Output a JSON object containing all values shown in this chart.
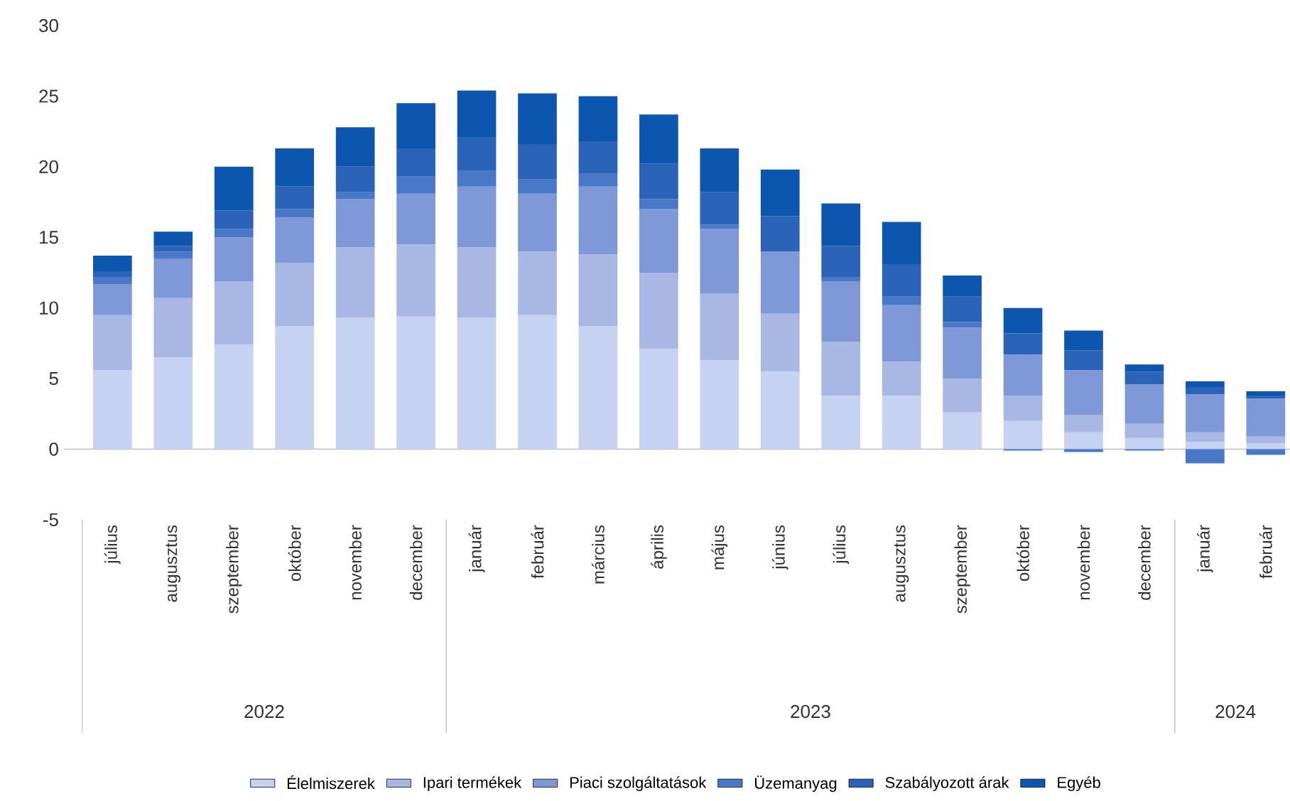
{
  "chart_data": {
    "type": "bar",
    "stacked": true,
    "x": [
      "2022-07",
      "2022-08",
      "2022-09",
      "2022-10",
      "2022-11",
      "2022-12",
      "2023-01",
      "2023-02",
      "2023-03",
      "2023-04",
      "2023-05",
      "2023-06",
      "2023-07",
      "2023-08",
      "2023-09",
      "2023-10",
      "2023-11",
      "2023-12",
      "2024-01",
      "2024-02"
    ],
    "xlim": [
      "2022-06-07",
      "2024-02-13"
    ],
    "xticks": [
      {
        "value": "2022-07",
        "label": "július"
      },
      {
        "value": "2022-08",
        "label": "augusztus"
      },
      {
        "value": "2022-09",
        "label": "szeptember"
      },
      {
        "value": "2022-10",
        "label": "október"
      },
      {
        "value": "2022-11",
        "label": "november"
      },
      {
        "value": "2022-12",
        "label": "december"
      },
      {
        "value": "2023-01",
        "label": "január"
      },
      {
        "value": "2023-02",
        "label": "február"
      },
      {
        "value": "2023-03",
        "label": "március"
      },
      {
        "value": "2023-04",
        "label": "április"
      },
      {
        "value": "2023-05",
        "label": "május"
      },
      {
        "value": "2023-06",
        "label": "június"
      },
      {
        "value": "2023-07",
        "label": "július"
      },
      {
        "value": "2023-08",
        "label": "augusztus"
      },
      {
        "value": "2023-09",
        "label": "szeptember"
      },
      {
        "value": "2023-10",
        "label": "október"
      },
      {
        "value": "2023-11",
        "label": "november"
      },
      {
        "value": "2023-12",
        "label": "december"
      },
      {
        "value": "2024-01",
        "label": "január"
      },
      {
        "value": "2024-02",
        "label": "február"
      }
    ],
    "annotations": [
      "2022",
      "2023",
      "2024"
    ],
    "ref_lines": [
      {
        "axis": "y",
        "value": 0,
        "color": "#bfbfbf"
      }
    ],
    "series": [
      {
        "name": "Élelmiszerek",
        "color": "#c6d2f2",
        "values": [
          5.6,
          6.5,
          7.4,
          8.7,
          9.3,
          9.4,
          9.3,
          9.5,
          8.7,
          7.1,
          6.3,
          5.5,
          3.8,
          3.8,
          2.6,
          2.0,
          1.2,
          0.8,
          0.5,
          0.4
        ]
      },
      {
        "name": "Ipari termékek",
        "color": "#a9b7e5",
        "values": [
          3.9,
          4.2,
          4.5,
          4.5,
          5.0,
          5.1,
          5.0,
          4.5,
          5.1,
          5.4,
          4.7,
          4.1,
          3.8,
          2.4,
          2.4,
          1.8,
          1.2,
          1.0,
          0.7,
          0.5
        ]
      },
      {
        "name": "Piaci szolgáltatások",
        "color": "#7f98d8",
        "values": [
          2.2,
          2.8,
          3.1,
          3.2,
          3.4,
          3.6,
          4.3,
          4.1,
          4.8,
          4.5,
          4.6,
          4.4,
          4.3,
          4.0,
          3.6,
          2.9,
          3.2,
          2.8,
          2.7,
          2.7
        ]
      },
      {
        "name": "Üzemanyag",
        "color": "#4a78c8",
        "values": [
          0.5,
          0.5,
          0.6,
          0.6,
          0.5,
          1.2,
          1.1,
          1.0,
          0.9,
          0.7,
          0.3,
          0.0,
          0.3,
          0.6,
          0.4,
          -0.1,
          -0.2,
          -0.1,
          -1.0,
          -0.4
        ]
      },
      {
        "name": "Szabályozott árak",
        "color": "#2a63b8",
        "values": [
          0.4,
          0.4,
          1.3,
          1.6,
          1.8,
          2.0,
          2.4,
          2.5,
          2.3,
          2.5,
          2.3,
          2.5,
          2.2,
          2.3,
          1.8,
          1.5,
          1.4,
          0.9,
          0.5,
          0.2
        ]
      },
      {
        "name": "Egyéb",
        "color": "#0d56b0",
        "values": [
          1.1,
          1.0,
          3.1,
          2.7,
          2.8,
          3.2,
          3.3,
          3.6,
          3.2,
          3.5,
          3.1,
          3.3,
          3.0,
          3.0,
          1.5,
          1.8,
          1.4,
          0.5,
          0.4,
          0.3
        ]
      }
    ],
    "ylim": [
      -5,
      30
    ],
    "yticks": [
      -5,
      0,
      5,
      10,
      15,
      20,
      25,
      30
    ],
    "grid": false,
    "legend": "bottom"
  }
}
